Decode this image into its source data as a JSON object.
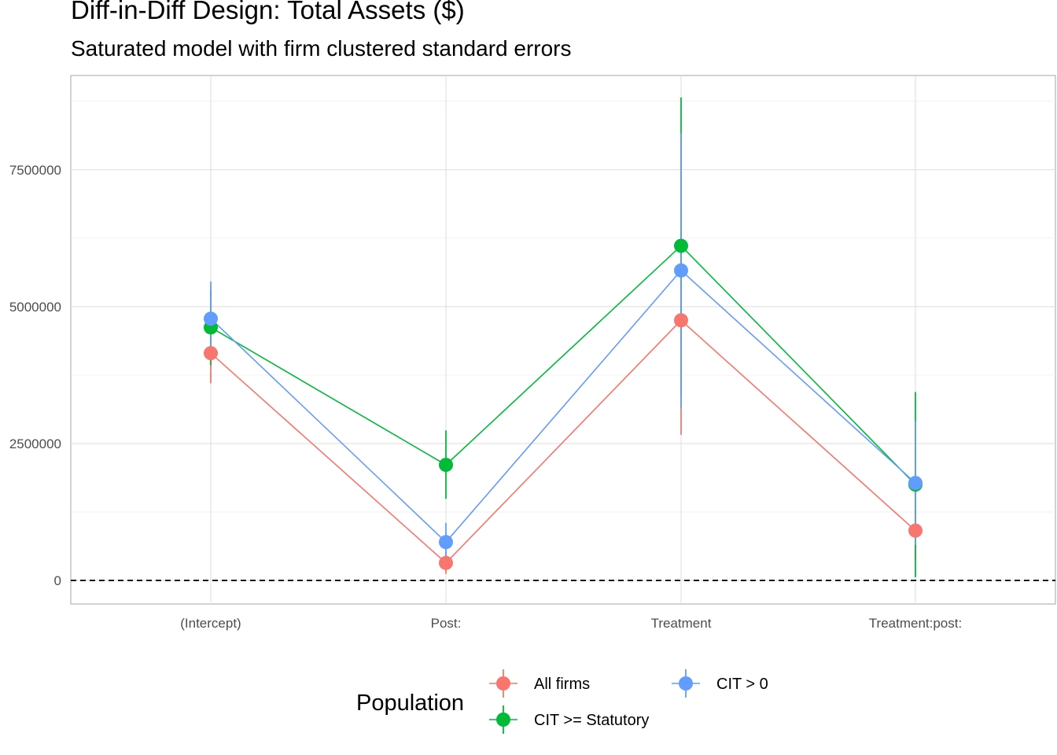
{
  "chart_data": {
    "type": "line",
    "title": "Diff-in-Diff Design: Total Assets ($)",
    "subtitle": "Saturated model with firm clustered standard errors",
    "xlabel": "",
    "ylabel": "",
    "categories": [
      "(Intercept)",
      "Post:",
      "Treatment",
      "Treatment:post:"
    ],
    "y_ticks": [
      0,
      2500000,
      5000000,
      7500000
    ],
    "y_tick_labels": [
      "0",
      "2500000",
      "5000000",
      "7500000"
    ],
    "ylim": [
      -430000,
      9220000
    ],
    "reference_line": {
      "y": 0,
      "style": "dashed"
    },
    "grid": true,
    "legend": {
      "title": "Population",
      "position": "bottom",
      "entries": [
        "All firms",
        "CIT >= Statutory",
        "CIT > 0"
      ]
    },
    "series": [
      {
        "name": "All firms",
        "color": "#F8766D",
        "values": [
          4150000,
          320000,
          4750000,
          910000
        ],
        "lower": [
          3600000,
          120000,
          2660000,
          380000
        ],
        "upper": [
          4700000,
          520000,
          6840000,
          1450000
        ]
      },
      {
        "name": "CIT >= Statutory",
        "color": "#00BA38",
        "values": [
          4620000,
          2110000,
          6110000,
          1750000
        ],
        "lower": [
          3930000,
          1490000,
          3400000,
          60000
        ],
        "upper": [
          5310000,
          2740000,
          8820000,
          3440000
        ]
      },
      {
        "name": "CIT > 0",
        "color": "#619CFF",
        "values": [
          4780000,
          700000,
          5660000,
          1780000
        ],
        "lower": [
          4100000,
          350000,
          3150000,
          650000
        ],
        "upper": [
          5460000,
          1050000,
          8170000,
          2910000
        ]
      }
    ]
  }
}
